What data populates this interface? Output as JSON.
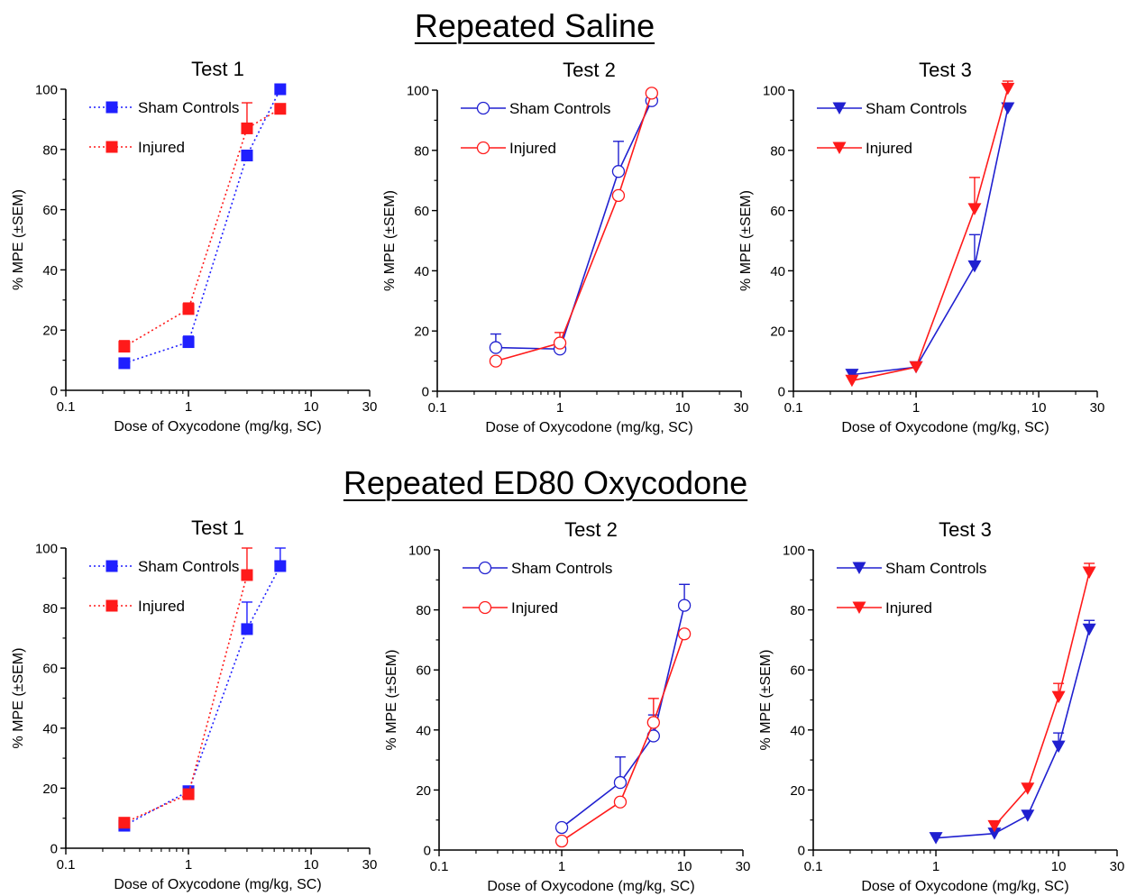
{
  "sections": [
    {
      "title": "Repeated Saline"
    },
    {
      "title": "Repeated ED80 Oxycodone"
    }
  ],
  "colors": {
    "sham_filled": "#1f1fff",
    "sham_line": "#2020d0",
    "injured": "#ff1a1a"
  },
  "chart_data": [
    {
      "type": "line",
      "section": "Repeated Saline",
      "title": "Test 1",
      "xlabel": "Dose of Oxycodone (mg/kg, SC)",
      "ylabel": "% MPE (±SEM)",
      "xscale": "log",
      "xlim": [
        0.1,
        30
      ],
      "ylim": [
        0,
        100
      ],
      "xticks": [
        0.1,
        1,
        10,
        30
      ],
      "xtick_labels": [
        "0.1",
        "1",
        "10",
        "30"
      ],
      "yticks": [
        0,
        20,
        40,
        60,
        80,
        100
      ],
      "marker": "square",
      "line_style": "dotted",
      "grid": false,
      "legend": "top-left",
      "series": [
        {
          "name": "Sham Controls",
          "color": "#1f1fff",
          "x": [
            0.3,
            1,
            3,
            5.6
          ],
          "y": [
            9,
            16,
            78,
            100
          ],
          "err": [
            1.5,
            2,
            0,
            0
          ]
        },
        {
          "name": "Injured",
          "color": "#ff1a1a",
          "x": [
            0.3,
            1,
            3,
            5.6
          ],
          "y": [
            14.5,
            27,
            87,
            93.5
          ],
          "err": [
            2,
            2,
            8.5,
            0
          ]
        }
      ]
    },
    {
      "type": "line",
      "section": "Repeated Saline",
      "title": "Test 2",
      "xlabel": "Dose of Oxycodone (mg/kg, SC)",
      "ylabel": "% MPE (±SEM)",
      "xscale": "log",
      "xlim": [
        0.1,
        30
      ],
      "ylim": [
        0,
        100
      ],
      "xticks": [
        0.1,
        1,
        10,
        30
      ],
      "xtick_labels": [
        "0.1",
        "1",
        "10",
        "30"
      ],
      "yticks": [
        0,
        20,
        40,
        60,
        80,
        100
      ],
      "marker": "circle-open",
      "line_style": "solid",
      "grid": false,
      "legend": "top-left",
      "series": [
        {
          "name": "Sham Controls",
          "color": "#2020d0",
          "x": [
            0.3,
            1,
            3,
            5.6
          ],
          "y": [
            14.5,
            14,
            73,
            96.5
          ],
          "err": [
            4.5,
            0,
            10,
            0
          ]
        },
        {
          "name": "Injured",
          "color": "#ff1a1a",
          "x": [
            0.3,
            1,
            3,
            5.6
          ],
          "y": [
            10,
            16,
            65,
            99
          ],
          "err": [
            0,
            3.5,
            0,
            0
          ]
        }
      ]
    },
    {
      "type": "line",
      "section": "Repeated Saline",
      "title": "Test 3",
      "xlabel": "Dose of Oxycodone (mg/kg, SC)",
      "ylabel": "% MPE (±SEM)",
      "xscale": "log",
      "xlim": [
        0.1,
        30
      ],
      "ylim": [
        0,
        100
      ],
      "xticks": [
        0.1,
        1,
        10,
        30
      ],
      "xtick_labels": [
        "0.1",
        "1",
        "10",
        "30"
      ],
      "yticks": [
        0,
        20,
        40,
        60,
        80,
        100
      ],
      "marker": "triangle-down",
      "line_style": "solid",
      "grid": false,
      "legend": "top-left",
      "series": [
        {
          "name": "Sham Controls",
          "color": "#2020d0",
          "x": [
            0.3,
            1,
            3,
            5.6
          ],
          "y": [
            5.5,
            8,
            41.5,
            94
          ],
          "err": [
            0,
            0,
            10.5,
            0
          ]
        },
        {
          "name": "Injured",
          "color": "#ff1a1a",
          "x": [
            0.3,
            1,
            3,
            5.6
          ],
          "y": [
            3.5,
            8,
            60.5,
            100.5
          ],
          "err": [
            0,
            0,
            10.5,
            2.5
          ]
        }
      ]
    },
    {
      "type": "line",
      "section": "Repeated ED80 Oxycodone",
      "title": "Test 1",
      "xlabel": "Dose of Oxycodone (mg/kg, SC)",
      "ylabel": "% MPE (±SEM)",
      "xscale": "log",
      "xlim": [
        0.1,
        30
      ],
      "ylim": [
        0,
        100
      ],
      "xticks": [
        0.1,
        1,
        10,
        30
      ],
      "xtick_labels": [
        "0.1",
        "1",
        "10",
        "30"
      ],
      "yticks": [
        0,
        20,
        40,
        60,
        80,
        100
      ],
      "marker": "square",
      "line_style": "dotted",
      "grid": false,
      "legend": "top-left",
      "series": [
        {
          "name": "Sham Controls",
          "color": "#1f1fff",
          "x": [
            0.3,
            1,
            3,
            5.6
          ],
          "y": [
            7.5,
            19,
            73,
            94
          ],
          "err": [
            0,
            1.5,
            9,
            6
          ]
        },
        {
          "name": "Injured",
          "color": "#ff1a1a",
          "x": [
            0.3,
            1,
            3
          ],
          "y": [
            8.5,
            18,
            91
          ],
          "err": [
            0,
            0,
            9
          ]
        }
      ]
    },
    {
      "type": "line",
      "section": "Repeated ED80 Oxycodone",
      "title": "Test 2",
      "xlabel": "Dose of Oxycodone (mg/kg, SC)",
      "ylabel": "% MPE (±SEM)",
      "xscale": "log",
      "xlim": [
        0.1,
        30
      ],
      "ylim": [
        0,
        100
      ],
      "xticks": [
        0.1,
        1,
        10,
        30
      ],
      "xtick_labels": [
        "0.1",
        "1",
        "10",
        "30"
      ],
      "yticks": [
        0,
        20,
        40,
        60,
        80,
        100
      ],
      "marker": "circle-open",
      "line_style": "solid",
      "grid": false,
      "legend": "top-left",
      "series": [
        {
          "name": "Sham Controls",
          "color": "#2020d0",
          "x": [
            1,
            3,
            5.6,
            10
          ],
          "y": [
            7.5,
            22.5,
            38,
            81.5
          ],
          "err": [
            0,
            8.5,
            7,
            7
          ]
        },
        {
          "name": "Injured",
          "color": "#ff1a1a",
          "x": [
            1,
            3,
            5.6,
            10
          ],
          "y": [
            3,
            16,
            42.5,
            72
          ],
          "err": [
            0,
            0,
            8,
            0
          ]
        }
      ]
    },
    {
      "type": "line",
      "section": "Repeated ED80 Oxycodone",
      "title": "Test 3",
      "xlabel": "Dose of Oxycodone (mg/kg, SC)",
      "ylabel": "% MPE (±SEM)",
      "xscale": "log",
      "xlim": [
        0.1,
        30
      ],
      "ylim": [
        0,
        100
      ],
      "xticks": [
        0.1,
        1,
        10,
        30
      ],
      "xtick_labels": [
        "0.1",
        "1",
        "10",
        "30"
      ],
      "yticks": [
        0,
        20,
        40,
        60,
        80,
        100
      ],
      "marker": "triangle-down",
      "line_style": "solid",
      "grid": false,
      "legend": "top-left",
      "series": [
        {
          "name": "Sham Controls",
          "color": "#2020d0",
          "x": [
            1,
            3,
            5.6,
            10,
            17.8
          ],
          "y": [
            4,
            5.5,
            11.5,
            34.5,
            73.5
          ],
          "err": [
            0,
            0,
            0,
            4.5,
            3
          ]
        },
        {
          "name": "Injured",
          "color": "#ff1a1a",
          "x": [
            3,
            5.6,
            10,
            17.8
          ],
          "y": [
            8,
            20.5,
            51,
            92.5
          ],
          "err": [
            0,
            0,
            4.5,
            3
          ]
        }
      ]
    }
  ]
}
